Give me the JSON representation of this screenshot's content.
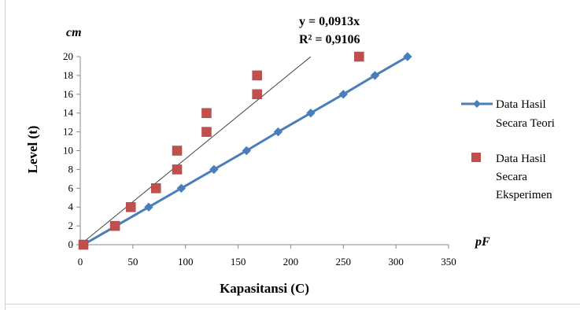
{
  "chart_data": {
    "type": "scatter",
    "title": "",
    "xlabel": "Kapasitansi (C)",
    "ylabel": "Level (t)",
    "x_unit": "pF",
    "y_unit": "cm",
    "xlim": [
      0,
      350
    ],
    "ylim": [
      0,
      20
    ],
    "x_ticks": [
      "0",
      "50",
      "100",
      "150",
      "200",
      "250",
      "300",
      "350"
    ],
    "y_ticks": [
      "0",
      "2",
      "4",
      "6",
      "8",
      "10",
      "12",
      "14",
      "16",
      "18",
      "20"
    ],
    "grid": false,
    "legend_position": "right",
    "series": [
      {
        "name": "Data Hasil Secara Teori",
        "name_lines": [
          "Data Hasil",
          "Secara Teori"
        ],
        "style": "line-diamond",
        "color": "#4a7ebb",
        "points": [
          [
            3,
            0
          ],
          [
            65,
            4
          ],
          [
            96,
            6
          ],
          [
            127,
            8
          ],
          [
            158,
            10
          ],
          [
            188,
            12
          ],
          [
            219,
            14
          ],
          [
            250,
            16
          ],
          [
            280,
            18
          ],
          [
            311,
            20
          ]
        ]
      },
      {
        "name": "Data Hasil Secara Eksperimen",
        "name_lines": [
          "Data Hasil",
          "Secara",
          "Eksperimen"
        ],
        "style": "square-marker",
        "color": "#c0504d",
        "points": [
          [
            3,
            0
          ],
          [
            33,
            2
          ],
          [
            48,
            4
          ],
          [
            72,
            6
          ],
          [
            92,
            8
          ],
          [
            92,
            10
          ],
          [
            120,
            12
          ],
          [
            120,
            14
          ],
          [
            168,
            16
          ],
          [
            168,
            18
          ],
          [
            265,
            20
          ]
        ]
      }
    ],
    "trendline": {
      "series": "Data Hasil Secara Eksperimen",
      "slope": 0.0913,
      "x_range": [
        0,
        219
      ],
      "color": "#404040",
      "equation": "y = 0,0913x",
      "r_squared": "R² = 0,9106"
    }
  }
}
